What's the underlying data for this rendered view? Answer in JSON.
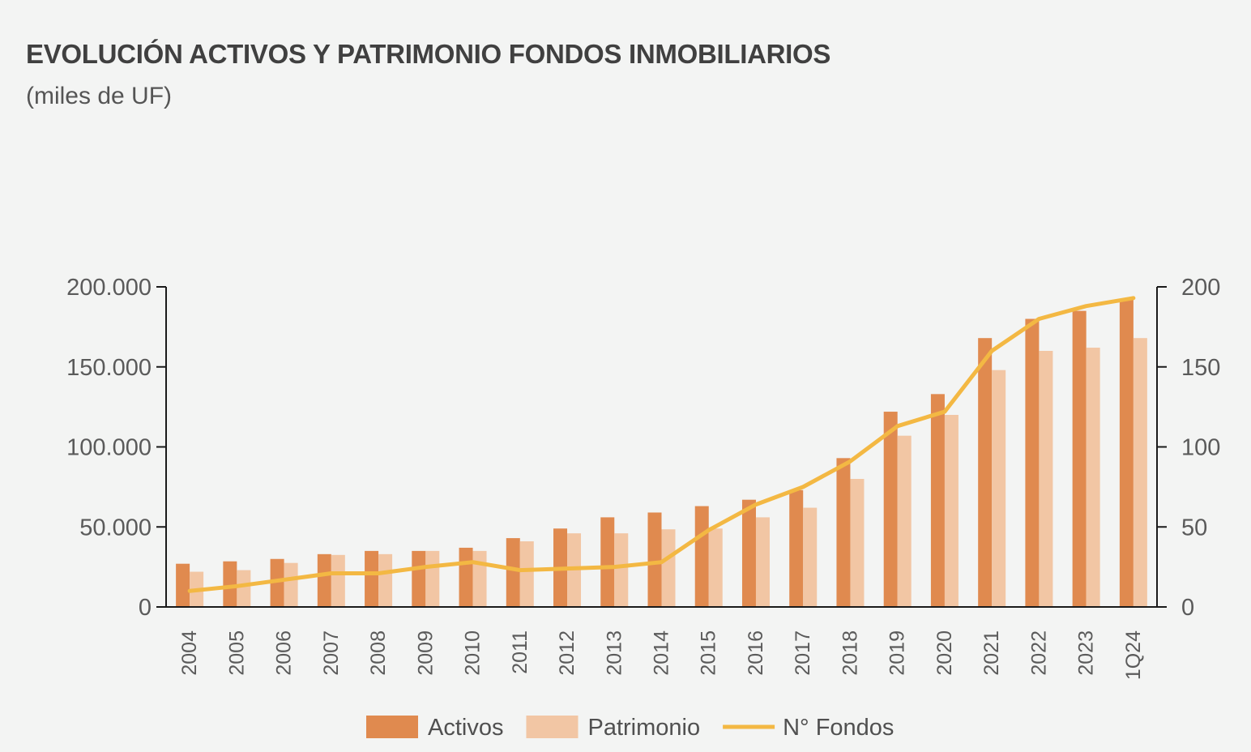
{
  "title": "EVOLUCIÓN ACTIVOS Y PATRIMONIO FONDOS INMOBILIARIOS",
  "subtitle": "(miles de UF)",
  "chart_data": {
    "type": "bar",
    "categories": [
      "2004",
      "2005",
      "2006",
      "2007",
      "2008",
      "2009",
      "2010",
      "2011",
      "2012",
      "2013",
      "2014",
      "2015",
      "2016",
      "2017",
      "2018",
      "2019",
      "2020",
      "2021",
      "2022",
      "2023",
      "1Q24"
    ],
    "series": [
      {
        "name": "Activos",
        "type": "bar",
        "axis": "left",
        "color": "#e08a4f",
        "values": [
          27000,
          28500,
          30000,
          33000,
          35000,
          35000,
          37000,
          43000,
          49000,
          56000,
          59000,
          63000,
          67000,
          73000,
          93000,
          122000,
          133000,
          168000,
          180000,
          185000,
          192000
        ]
      },
      {
        "name": "Patrimonio",
        "type": "bar",
        "axis": "left",
        "color": "#f2c6a4",
        "values": [
          22000,
          23000,
          27500,
          32500,
          33000,
          35000,
          35000,
          41000,
          46000,
          46000,
          48500,
          49000,
          56000,
          62000,
          80000,
          107000,
          120000,
          148000,
          160000,
          162000,
          168000
        ]
      },
      {
        "name": "N° Fondos",
        "type": "line",
        "axis": "right",
        "color": "#f3b843",
        "values": [
          10,
          13,
          17,
          21,
          21,
          25,
          28,
          23,
          24,
          25,
          28,
          48,
          64,
          75,
          91,
          113,
          122,
          160,
          180,
          188,
          193
        ]
      }
    ],
    "y_left": {
      "ticks": [
        0,
        50000,
        100000,
        150000,
        200000
      ],
      "tick_labels": [
        "0",
        "50.000",
        "100.000",
        "150.000",
        "200.000"
      ],
      "lim": [
        0,
        200000
      ]
    },
    "y_right": {
      "ticks": [
        0,
        50,
        100,
        150,
        200
      ],
      "tick_labels": [
        "0",
        "50",
        "100",
        "150",
        "200"
      ],
      "lim": [
        0,
        200
      ]
    },
    "legend": {
      "placement": "bottom",
      "entries": [
        "Activos",
        "Patrimonio",
        "N° Fondos"
      ]
    },
    "grid": false
  }
}
